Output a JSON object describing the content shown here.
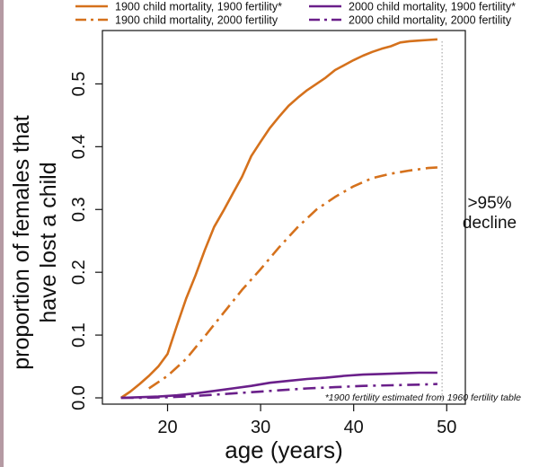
{
  "chart_data": {
    "type": "line",
    "title": "",
    "xlabel": "age (years)",
    "ylabel": "proportion of females that have lost a child",
    "ylabel_lines": [
      "proportion of females that",
      "have lost a child"
    ],
    "xlim": [
      13,
      52
    ],
    "ylim": [
      -0.01,
      0.585
    ],
    "x_ticks": [
      20,
      30,
      40,
      50
    ],
    "y_ticks": [
      0.0,
      0.1,
      0.2,
      0.3,
      0.4,
      0.5
    ],
    "grid": false,
    "legend_position": "top",
    "series": [
      {
        "name": "1900 child mortality, 1900 fertility*",
        "color": "#d5711c",
        "dash": "solid",
        "x": [
          15,
          16,
          17,
          18,
          19,
          20,
          21,
          22,
          23,
          24,
          25,
          26,
          27,
          28,
          29,
          30,
          31,
          32,
          33,
          34,
          35,
          36,
          37,
          38,
          39,
          40,
          41,
          42,
          43,
          44,
          45,
          46,
          47,
          48,
          49
        ],
        "y": [
          0.0,
          0.01,
          0.022,
          0.035,
          0.05,
          0.07,
          0.115,
          0.158,
          0.195,
          0.235,
          0.272,
          0.298,
          0.325,
          0.352,
          0.385,
          0.408,
          0.43,
          0.448,
          0.465,
          0.478,
          0.49,
          0.5,
          0.51,
          0.522,
          0.53,
          0.538,
          0.545,
          0.551,
          0.556,
          0.56,
          0.566,
          0.568,
          0.569,
          0.57,
          0.571
        ]
      },
      {
        "name": "1900 child mortality, 2000 fertility",
        "color": "#d5711c",
        "dash": "dashdot",
        "x": [
          18,
          20,
          22,
          24,
          26,
          28,
          30,
          32,
          34,
          36,
          38,
          40,
          42,
          44,
          46,
          48,
          49
        ],
        "y": [
          0.015,
          0.035,
          0.062,
          0.098,
          0.135,
          0.172,
          0.205,
          0.24,
          0.272,
          0.3,
          0.32,
          0.337,
          0.35,
          0.357,
          0.362,
          0.366,
          0.367
        ]
      },
      {
        "name": "2000 child mortality, 1900 fertility*",
        "color": "#6a1f8a",
        "dash": "solid",
        "x": [
          15,
          17,
          19,
          21,
          23,
          25,
          27,
          29,
          31,
          33,
          35,
          37,
          39,
          41,
          43,
          45,
          47,
          49
        ],
        "y": [
          0.0,
          0.001,
          0.002,
          0.004,
          0.007,
          0.011,
          0.015,
          0.019,
          0.024,
          0.027,
          0.03,
          0.032,
          0.035,
          0.037,
          0.038,
          0.039,
          0.04,
          0.04
        ]
      },
      {
        "name": "2000 child mortality, 2000 fertility",
        "color": "#6a1f8a",
        "dash": "dashdot",
        "x": [
          15,
          17,
          20,
          23,
          26,
          29,
          32,
          35,
          38,
          41,
          44,
          47,
          49
        ],
        "y": [
          0.0,
          0.0,
          0.001,
          0.003,
          0.006,
          0.009,
          0.012,
          0.015,
          0.017,
          0.019,
          0.02,
          0.021,
          0.022
        ]
      }
    ],
    "reference_line": {
      "x": 49.5,
      "style": "dotted",
      "color": "#999999"
    },
    "annotations": {
      "decline_line1": ">95%",
      "decline_line2": "decline",
      "footnote": "*1900 fertility estimated from 1960 fertility table"
    }
  }
}
